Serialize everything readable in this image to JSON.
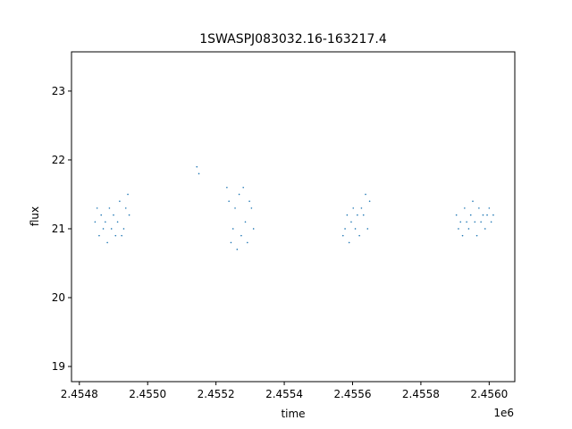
{
  "chart_data": {
    "type": "scatter",
    "title": "1SWASPJ083032.16-163217.4",
    "xlabel": "time",
    "ylabel": "flux",
    "x_offset_label": "1e6",
    "xlim": [
      2454777,
      2456075
    ],
    "ylim": [
      18.78,
      23.57
    ],
    "x_ticks": [
      2454800,
      2455000,
      2455200,
      2455400,
      2455600,
      2455800,
      2456000
    ],
    "x_tick_labels": [
      "2.4548",
      "2.4550",
      "2.4552",
      "2.4554",
      "2.4556",
      "2.4558",
      "2.4560"
    ],
    "y_ticks": [
      19,
      20,
      21,
      22,
      23
    ],
    "y_tick_labels": [
      "19",
      "20",
      "21",
      "22",
      "23"
    ],
    "marker_color": "#1f77b4",
    "grid": false,
    "series": [
      {
        "x": [
          2454846,
          2454852,
          2454858,
          2454864,
          2454870,
          2454876,
          2454882,
          2454888,
          2454894,
          2454900,
          2454906,
          2454912,
          2454918,
          2454924,
          2454930,
          2454936,
          2454942,
          2454946,
          2455144,
          2455150,
          2455232,
          2455238,
          2455244,
          2455250,
          2455256,
          2455262,
          2455268,
          2455274,
          2455280,
          2455286,
          2455292,
          2455298,
          2455304,
          2455310,
          2455572,
          2455578,
          2455584,
          2455590,
          2455596,
          2455602,
          2455608,
          2455614,
          2455620,
          2455626,
          2455632,
          2455638,
          2455644,
          2455650,
          2455904,
          2455910,
          2455916,
          2455922,
          2455928,
          2455934,
          2455940,
          2455946,
          2455952,
          2455958,
          2455964,
          2455970,
          2455976,
          2455982,
          2455988,
          2455994,
          2456000,
          2456006,
          2456012
        ],
        "y": [
          21.1,
          21.3,
          20.9,
          21.2,
          21.0,
          21.1,
          20.8,
          21.3,
          21.0,
          21.2,
          20.9,
          21.1,
          21.4,
          20.9,
          21.0,
          21.3,
          21.5,
          21.2,
          21.9,
          21.8,
          21.6,
          21.4,
          20.8,
          21.0,
          21.3,
          20.7,
          21.5,
          20.9,
          21.6,
          21.1,
          20.8,
          21.4,
          21.3,
          21.0,
          20.9,
          21.0,
          21.2,
          20.8,
          21.1,
          21.3,
          21.0,
          21.2,
          20.9,
          21.3,
          21.2,
          21.5,
          21.0,
          21.4,
          21.2,
          21.0,
          21.1,
          20.9,
          21.3,
          21.1,
          21.0,
          21.2,
          21.4,
          21.1,
          20.9,
          21.3,
          21.1,
          21.2,
          21.0,
          21.2,
          21.3,
          21.1,
          21.2
        ]
      }
    ]
  }
}
